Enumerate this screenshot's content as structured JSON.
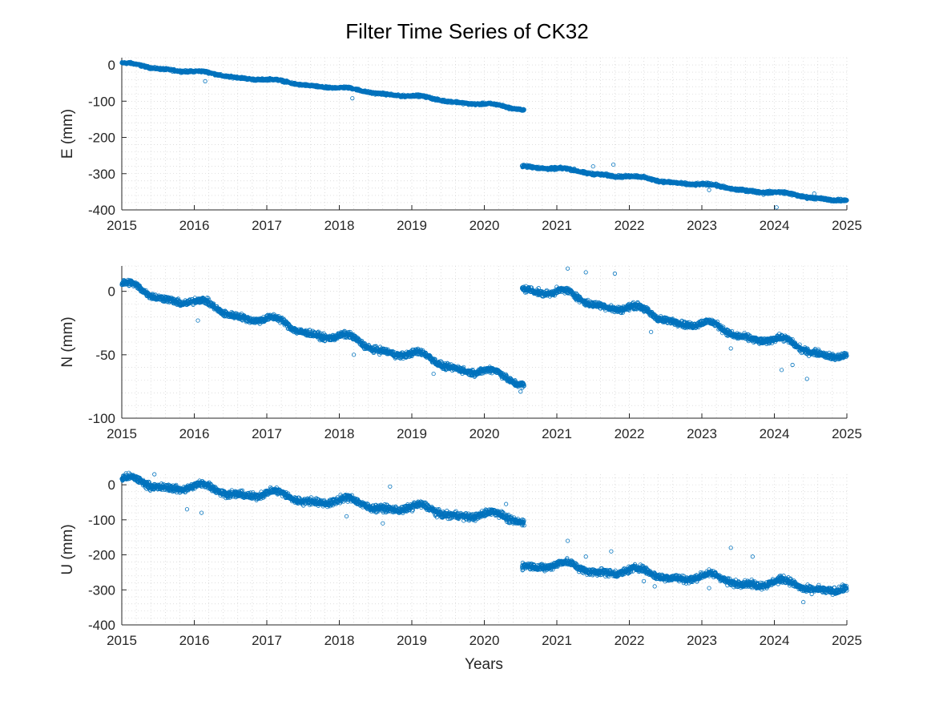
{
  "figure": {
    "title": "Filter Time Series of CK32",
    "xlabel": "Years"
  },
  "style": {
    "marker_color": "#0072BD",
    "axis_color": "#262626",
    "grid_color": "#b5b5b5",
    "background": "#ffffff"
  },
  "chart_data": [
    {
      "type": "scatter",
      "ylabel": "E (mm)",
      "xlim": [
        2015,
        2025
      ],
      "ylim": [
        -400,
        20
      ],
      "xticks": [
        2015,
        2016,
        2017,
        2018,
        2019,
        2020,
        2021,
        2022,
        2023,
        2024,
        2025
      ],
      "yticks": [
        0,
        -100,
        -200,
        -300,
        -400
      ],
      "grid": true,
      "minor_grid": true,
      "segments": [
        {
          "x_start": 2015.0,
          "x_end": 2020.55,
          "y_start": 3,
          "y_end": -122,
          "noise": 2.5,
          "wobble": 3
        },
        {
          "x_start": 2020.52,
          "x_end": 2025.0,
          "y_start": -277,
          "y_end": -375,
          "noise": 3,
          "wobble": 3
        }
      ],
      "outliers": [
        {
          "x": 2016.15,
          "y": -45
        },
        {
          "x": 2018.18,
          "y": -92
        },
        {
          "x": 2021.5,
          "y": -280
        },
        {
          "x": 2021.78,
          "y": -275
        },
        {
          "x": 2023.1,
          "y": -345
        },
        {
          "x": 2023.85,
          "y": -358
        },
        {
          "x": 2024.03,
          "y": -393
        },
        {
          "x": 2024.55,
          "y": -355
        }
      ]
    },
    {
      "type": "scatter",
      "ylabel": "N (mm)",
      "xlim": [
        2015,
        2025
      ],
      "ylim": [
        -100,
        20
      ],
      "xticks": [
        2015,
        2016,
        2017,
        2018,
        2019,
        2020,
        2021,
        2022,
        2023,
        2024,
        2025
      ],
      "yticks": [
        0,
        -50,
        -100
      ],
      "grid": true,
      "minor_grid": true,
      "segments": [
        {
          "x_start": 2015.0,
          "x_end": 2020.55,
          "y_start": 4,
          "y_end": -72,
          "noise": 2,
          "wobble": 3
        },
        {
          "x_start": 2020.52,
          "x_end": 2025.0,
          "y_start": 4,
          "y_end": -52,
          "noise": 2,
          "wobble": 3
        }
      ],
      "outliers": [
        {
          "x": 2016.05,
          "y": -23
        },
        {
          "x": 2018.2,
          "y": -50
        },
        {
          "x": 2019.3,
          "y": -65
        },
        {
          "x": 2020.5,
          "y": -79
        },
        {
          "x": 2021.15,
          "y": 18
        },
        {
          "x": 2021.4,
          "y": 15
        },
        {
          "x": 2021.8,
          "y": 14
        },
        {
          "x": 2022.3,
          "y": -32
        },
        {
          "x": 2023.4,
          "y": -45
        },
        {
          "x": 2024.1,
          "y": -62
        },
        {
          "x": 2024.25,
          "y": -58
        },
        {
          "x": 2024.45,
          "y": -69
        }
      ]
    },
    {
      "type": "scatter",
      "ylabel": "U (mm)",
      "xlim": [
        2015,
        2025
      ],
      "ylim": [
        -400,
        30
      ],
      "xticks": [
        2015,
        2016,
        2017,
        2018,
        2019,
        2020,
        2021,
        2022,
        2023,
        2024,
        2025
      ],
      "yticks": [
        0,
        -100,
        -200,
        -300,
        -400
      ],
      "grid": true,
      "minor_grid": true,
      "segments": [
        {
          "x_start": 2015.0,
          "x_end": 2020.55,
          "y_start": 10,
          "y_end": -100,
          "noise": 8,
          "wobble": 10
        },
        {
          "x_start": 2020.52,
          "x_end": 2025.0,
          "y_start": -225,
          "y_end": -300,
          "noise": 8,
          "wobble": 10
        }
      ],
      "outliers": [
        {
          "x": 2015.45,
          "y": 30
        },
        {
          "x": 2015.9,
          "y": -70
        },
        {
          "x": 2016.1,
          "y": -80
        },
        {
          "x": 2018.1,
          "y": -90
        },
        {
          "x": 2018.6,
          "y": -110
        },
        {
          "x": 2018.7,
          "y": -5
        },
        {
          "x": 2020.3,
          "y": -55
        },
        {
          "x": 2021.15,
          "y": -160
        },
        {
          "x": 2021.4,
          "y": -205
        },
        {
          "x": 2021.75,
          "y": -190
        },
        {
          "x": 2022.2,
          "y": -275
        },
        {
          "x": 2022.35,
          "y": -290
        },
        {
          "x": 2023.1,
          "y": -295
        },
        {
          "x": 2023.4,
          "y": -180
        },
        {
          "x": 2023.7,
          "y": -205
        },
        {
          "x": 2024.4,
          "y": -335
        }
      ]
    }
  ]
}
